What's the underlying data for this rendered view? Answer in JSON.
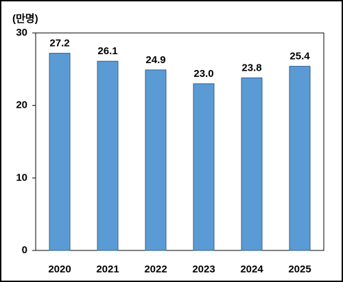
{
  "chart_data": {
    "type": "bar",
    "y_unit": "(만명)",
    "categories": [
      "2020",
      "2021",
      "2022",
      "2023",
      "2024",
      "2025"
    ],
    "values": [
      27.2,
      26.1,
      24.9,
      23.0,
      23.8,
      25.4
    ],
    "value_labels": [
      "27.2",
      "26.1",
      "24.9",
      "23.0",
      "23.8",
      "25.4"
    ],
    "color": "#5b9bd5",
    "ylim": [
      0,
      30
    ],
    "yticks": [
      0,
      10,
      20,
      30
    ]
  }
}
